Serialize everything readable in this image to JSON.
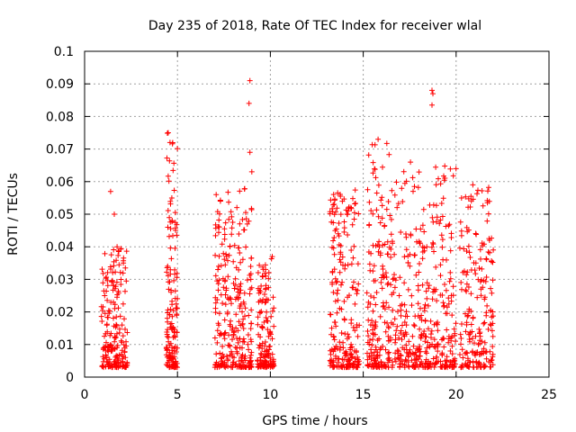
{
  "chart_data": {
    "type": "scatter",
    "title": "Day 235 of 2018, Rate Of TEC Index for receiver wlal",
    "xlabel": "GPS time / hours",
    "ylabel": "ROTI / TECUs",
    "xlim": [
      0,
      25
    ],
    "ylim": [
      0,
      0.1
    ],
    "xticks": [
      0,
      5,
      10,
      15,
      20,
      25
    ],
    "xtick_labels": [
      "0",
      "5",
      "10",
      "15",
      "20",
      "25"
    ],
    "yticks": [
      0,
      0.01,
      0.02,
      0.03,
      0.04,
      0.05,
      0.06,
      0.07,
      0.08,
      0.09,
      0.1
    ],
    "ytick_labels": [
      "0",
      "0.01",
      "0.02",
      "0.03",
      "0.04",
      "0.05",
      "0.06",
      "0.07",
      "0.08",
      "0.09",
      "0.1"
    ],
    "grid": true,
    "marker": "+",
    "color": "#ff0000",
    "clusters": [
      {
        "x": [
          0.9,
          2.3
        ],
        "y": [
          0.003,
          0.04
        ],
        "count": 200
      },
      {
        "x": [
          4.4,
          5.0
        ],
        "y": [
          0.003,
          0.075
        ],
        "count": 150
      },
      {
        "x": [
          7.0,
          9.0
        ],
        "y": [
          0.003,
          0.058
        ],
        "count": 280
      },
      {
        "x": [
          9.3,
          10.2
        ],
        "y": [
          0.003,
          0.037
        ],
        "count": 140
      },
      {
        "x": [
          13.2,
          14.8
        ],
        "y": [
          0.003,
          0.058
        ],
        "count": 220
      },
      {
        "x": [
          15.2,
          16.5
        ],
        "y": [
          0.003,
          0.073
        ],
        "count": 180
      },
      {
        "x": [
          16.5,
          20.0
        ],
        "y": [
          0.003,
          0.066
        ],
        "count": 380
      },
      {
        "x": [
          20.2,
          22.0
        ],
        "y": [
          0.003,
          0.059
        ],
        "count": 200
      }
    ],
    "points": [
      {
        "x": 1.4,
        "y": 0.057
      },
      {
        "x": 1.6,
        "y": 0.05
      },
      {
        "x": 4.5,
        "y": 0.075
      },
      {
        "x": 4.6,
        "y": 0.072
      },
      {
        "x": 8.9,
        "y": 0.091
      },
      {
        "x": 8.85,
        "y": 0.084
      },
      {
        "x": 8.9,
        "y": 0.069
      },
      {
        "x": 9.0,
        "y": 0.063
      },
      {
        "x": 15.8,
        "y": 0.073
      },
      {
        "x": 18.7,
        "y": 0.088
      },
      {
        "x": 18.75,
        "y": 0.087
      },
      {
        "x": 18.7,
        "y": 0.0835
      },
      {
        "x": 20.9,
        "y": 0.059
      },
      {
        "x": 10.1,
        "y": 0.037
      }
    ]
  }
}
